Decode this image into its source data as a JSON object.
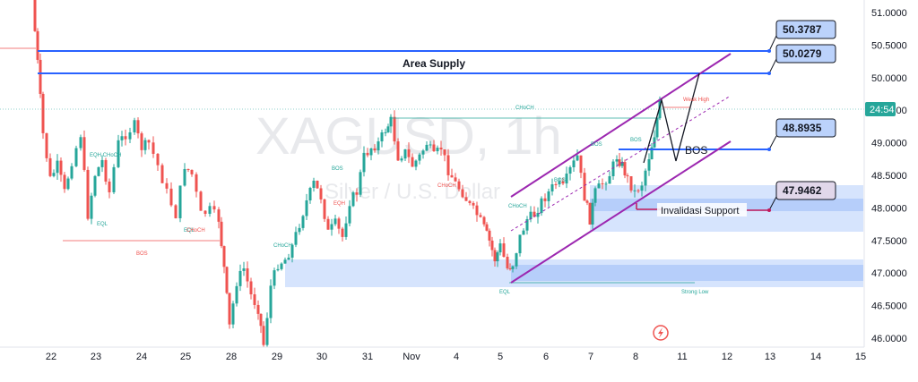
{
  "chart_data": {
    "type": "candlestick",
    "watermark": {
      "symbol": "XAGUSD, 1h",
      "subtitle": "Silver / U.S. Dollar"
    },
    "ylim": [
      45.9,
      51.2
    ],
    "y_ticks": [
      "51.0000",
      "50.5000",
      "50.0000",
      "49.5000",
      "49.0000",
      "48.5000",
      "48.0000",
      "47.5000",
      "47.0000",
      "46.5000",
      "46.0000"
    ],
    "y_tick_values": [
      51.0,
      50.5,
      50.0,
      49.5,
      49.0,
      48.5,
      48.0,
      47.5,
      47.0,
      46.5,
      46.0
    ],
    "x_ticks": [
      "22",
      "23",
      "24",
      "25",
      "28",
      "29",
      "30",
      "31",
      "Nov",
      "4",
      "5",
      "6",
      "7",
      "8",
      "11",
      "12",
      "13",
      "14",
      "15"
    ],
    "current_price": {
      "value": 49.48,
      "label": "24:54"
    },
    "price_labels": [
      {
        "label": "50.3787",
        "value": 50.3787,
        "style": "blue"
      },
      {
        "label": "50.0279",
        "value": 50.0279,
        "style": "blue"
      },
      {
        "label": "48.8935",
        "value": 48.8935,
        "style": "blue"
      },
      {
        "label": "47.9462",
        "value": 47.9462,
        "style": "pink"
      }
    ],
    "annotations": {
      "area_supply": "Area Supply",
      "bos_big": "BOS",
      "invalidasi": "Invalidasi Support",
      "choch_top": "CHoCH",
      "weak_high": "Weak High",
      "strong_low": "Strong Low",
      "bos_left": "BOS",
      "eqh_choch": "EQH CHoCH",
      "eql_left": "EQL",
      "eql_mid": "EQL",
      "choch_mid": "CHoCH",
      "bos_mid": "BOS",
      "eqh_mid": "EQH",
      "choch_left2": "CHoCH",
      "choch_nov": "CHoCH",
      "choch_nov5": "CHoCH",
      "bos_nov6": "BOS",
      "bos_nov7": "BOS",
      "bos_nov8": "BOS",
      "eql_bottom": "EQL"
    },
    "colors": {
      "up": "#26a69a",
      "down": "#ef5350",
      "blue_line": "#2962ff",
      "channel": "#9c27b0",
      "zone": "#bbd2fb"
    }
  }
}
